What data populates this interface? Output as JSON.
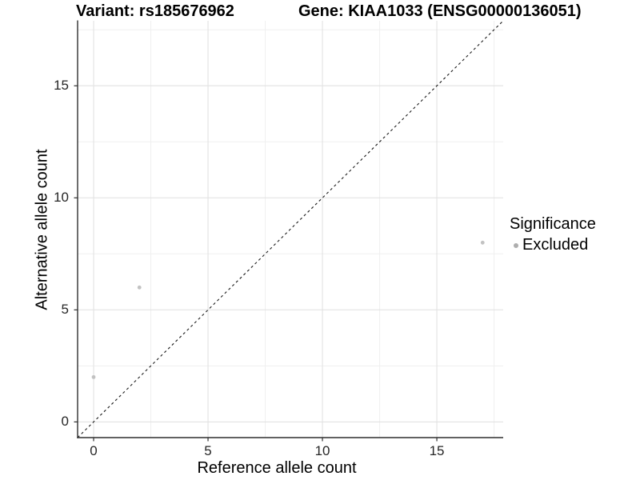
{
  "header": {
    "variant_title": "Variant: rs185676962",
    "gene_title": "Gene: KIAA1033 (ENSG00000136051)"
  },
  "chart_data": {
    "type": "scatter",
    "title": "Variant: rs185676962  /  Gene: KIAA1033 (ENSG00000136051)",
    "xlabel": "Reference allele count",
    "ylabel": "Alternative allele count",
    "xlim": [
      -0.7,
      17.9
    ],
    "ylim": [
      -0.7,
      17.9
    ],
    "x_major_ticks": [
      0,
      5,
      10,
      15
    ],
    "y_major_ticks": [
      0,
      5,
      10,
      15
    ],
    "x_minor_ticks": [
      2.5,
      7.5,
      12.5,
      17.5
    ],
    "y_minor_ticks": [
      2.5,
      7.5,
      12.5,
      17.5
    ],
    "grid": "major and minor gridlines on white panel",
    "series": [
      {
        "name": "Excluded",
        "color": "#c2c2c2",
        "point_radius": 2.4,
        "points": [
          {
            "x": 0,
            "y": 2
          },
          {
            "x": 2,
            "y": 6
          },
          {
            "x": 17,
            "y": 8
          }
        ]
      }
    ],
    "reference_line": {
      "equation": "y = x",
      "style": "dashed",
      "color": "#1a1a1a"
    },
    "legend": {
      "title": "Significance",
      "position": "right",
      "items": [
        {
          "label": "Excluded",
          "color": "#aeaeae"
        }
      ]
    }
  },
  "colors": {
    "background": "#ffffff",
    "axis_line": "#2f2f2f",
    "tick_mark": "#2f2f2f",
    "major_grid": "#e2e2e2",
    "minor_grid": "#efefef",
    "tick_text": "#262626",
    "title_text": "#000000"
  }
}
